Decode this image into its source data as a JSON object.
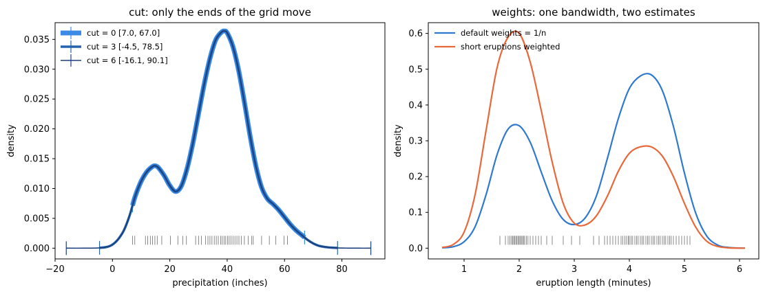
{
  "chart_data": [
    {
      "type": "line",
      "title": "cut: only the ends of the grid move",
      "xlabel": "precipitation (inches)",
      "ylabel": "density",
      "xlim": [
        -20,
        95
      ],
      "ylim": [
        -0.0018,
        0.0378
      ],
      "x_ticks": [
        -20,
        0,
        20,
        40,
        60,
        80
      ],
      "x_tick_labels": [
        "−20",
        "0",
        "20",
        "40",
        "60",
        "80"
      ],
      "y_ticks": [
        0,
        0.005,
        0.01,
        0.015,
        0.02,
        0.025,
        0.03,
        0.035
      ],
      "y_tick_labels": [
        "0.000",
        "0.005",
        "0.010",
        "0.015",
        "0.020",
        "0.025",
        "0.030",
        "0.035"
      ],
      "grid": false,
      "legend_position": "upper-left",
      "series": [
        {
          "name": "cut = 0  [7.0, 67.0]",
          "color": "#3b8ae6",
          "x_start": 7.0,
          "x_end": 67.0
        },
        {
          "name": "cut = 3  [-4.5, 78.5]",
          "color": "#2563ad",
          "x_start": -4.5,
          "x_end": 78.5
        },
        {
          "name": "cut = 6  [-16.1, 90.1]",
          "color": "#1a3f7a",
          "x_start": -16.1,
          "x_end": 90.1
        }
      ],
      "curve": {
        "x": [
          -16.1,
          -10,
          -5,
          -2,
          0,
          2,
          4,
          6,
          8,
          10,
          12,
          14,
          15,
          16,
          18,
          20,
          22,
          24,
          26,
          28,
          30,
          32,
          34,
          36,
          38,
          39,
          40,
          42,
          44,
          46,
          48,
          50,
          52,
          54,
          56,
          58,
          60,
          62,
          64,
          66,
          68,
          70,
          72,
          75,
          78,
          82,
          86,
          90.1
        ],
        "y": [
          0.0,
          0.0,
          3e-05,
          0.0002,
          0.0006,
          0.0015,
          0.003,
          0.0055,
          0.0088,
          0.0112,
          0.0128,
          0.0137,
          0.0138,
          0.0135,
          0.0122,
          0.0105,
          0.0095,
          0.0104,
          0.0133,
          0.0175,
          0.0225,
          0.0275,
          0.0318,
          0.0349,
          0.0362,
          0.0364,
          0.0361,
          0.0338,
          0.0298,
          0.0245,
          0.0188,
          0.0138,
          0.0102,
          0.0083,
          0.0074,
          0.0064,
          0.0052,
          0.004,
          0.003,
          0.0022,
          0.0014,
          0.0008,
          0.0004,
          0.00015,
          5e-05,
          1e-05,
          0.0,
          0.0
        ]
      },
      "rug_x": [
        7.0,
        7.8,
        11.5,
        12.3,
        13.2,
        14.0,
        14.8,
        15.6,
        17.2,
        20.2,
        22.8,
        24.5,
        25.8,
        29.0,
        30.1,
        31.0,
        32.5,
        33.3,
        34.0,
        34.7,
        35.5,
        36.2,
        36.9,
        37.7,
        38.3,
        38.9,
        39.5,
        40.1,
        40.7,
        41.3,
        42.0,
        42.7,
        43.4,
        44.1,
        44.9,
        46.0,
        47.3,
        48.5,
        49.1,
        52.0,
        54.7,
        56.9,
        59.8,
        61.0
      ]
    },
    {
      "type": "line",
      "title": "weights: one bandwidth, two estimates",
      "xlabel": "eruption length (minutes)",
      "ylabel": "density",
      "xlim": [
        0.35,
        6.35
      ],
      "ylim": [
        -0.03,
        0.63
      ],
      "x_ticks": [
        1,
        2,
        3,
        4,
        5,
        6
      ],
      "x_tick_labels": [
        "1",
        "2",
        "3",
        "4",
        "5",
        "6"
      ],
      "y_ticks": [
        0,
        0.1,
        0.2,
        0.3,
        0.4,
        0.5,
        0.6
      ],
      "y_tick_labels": [
        "0.0",
        "0.1",
        "0.2",
        "0.3",
        "0.4",
        "0.5",
        "0.6"
      ],
      "grid": false,
      "legend_position": "upper-left",
      "series": [
        {
          "name": "default weights = 1/n",
          "color": "#2f78cf",
          "x": [
            0.6,
            0.8,
            1.0,
            1.2,
            1.4,
            1.6,
            1.8,
            2.0,
            2.2,
            2.4,
            2.6,
            2.8,
            3.0,
            3.2,
            3.4,
            3.6,
            3.8,
            4.0,
            4.2,
            4.4,
            4.6,
            4.8,
            5.0,
            5.2,
            5.4,
            5.6,
            5.8,
            6.1
          ],
          "y": [
            0.001,
            0.004,
            0.018,
            0.06,
            0.15,
            0.262,
            0.333,
            0.342,
            0.296,
            0.213,
            0.132,
            0.08,
            0.066,
            0.085,
            0.145,
            0.25,
            0.362,
            0.446,
            0.481,
            0.484,
            0.44,
            0.34,
            0.21,
            0.1,
            0.035,
            0.009,
            0.002,
            0.0
          ]
        },
        {
          "name": "short eruptions weighted",
          "color": "#e8683a",
          "x": [
            0.6,
            0.8,
            1.0,
            1.2,
            1.4,
            1.6,
            1.8,
            2.0,
            2.2,
            2.4,
            2.6,
            2.8,
            3.0,
            3.2,
            3.4,
            3.6,
            3.8,
            4.0,
            4.2,
            4.4,
            4.6,
            4.8,
            5.0,
            5.2,
            5.4,
            5.6,
            5.8,
            6.1
          ],
          "y": [
            0.002,
            0.01,
            0.045,
            0.15,
            0.33,
            0.505,
            0.59,
            0.6,
            0.52,
            0.385,
            0.24,
            0.125,
            0.07,
            0.065,
            0.09,
            0.145,
            0.215,
            0.265,
            0.283,
            0.283,
            0.257,
            0.2,
            0.125,
            0.06,
            0.02,
            0.005,
            0.001,
            0.0
          ]
        }
      ],
      "rug_x": [
        1.65,
        1.75,
        1.8,
        1.83,
        1.86,
        1.88,
        1.9,
        1.92,
        1.94,
        1.96,
        1.98,
        2.0,
        2.02,
        2.04,
        2.06,
        2.08,
        2.1,
        2.13,
        2.16,
        2.2,
        2.25,
        2.3,
        2.35,
        2.4,
        2.5,
        2.6,
        2.8,
        2.95,
        3.1,
        3.35,
        3.45,
        3.55,
        3.6,
        3.65,
        3.7,
        3.75,
        3.8,
        3.85,
        3.88,
        3.92,
        3.95,
        3.98,
        4.0,
        4.03,
        4.06,
        4.1,
        4.13,
        4.16,
        4.2,
        4.23,
        4.26,
        4.3,
        4.33,
        4.36,
        4.4,
        4.43,
        4.46,
        4.5,
        4.53,
        4.56,
        4.6,
        4.63,
        4.66,
        4.7,
        4.73,
        4.76,
        4.8,
        4.85,
        4.9,
        4.95,
        5.0,
        5.05,
        5.1
      ]
    }
  ]
}
